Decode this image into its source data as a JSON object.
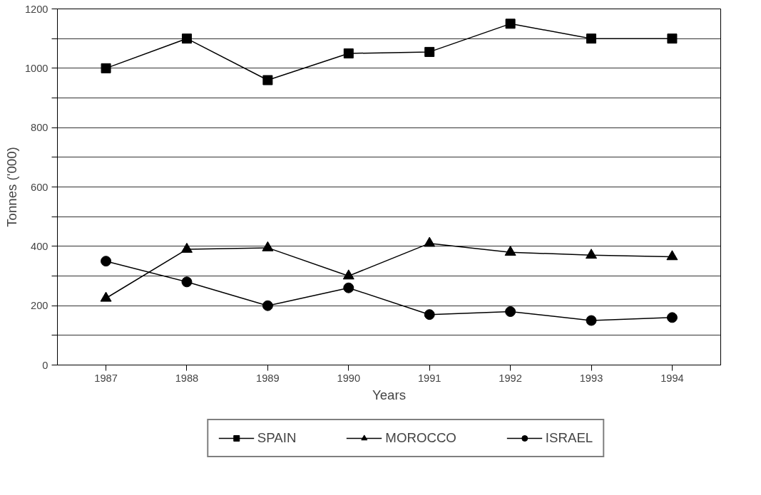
{
  "chart_data": {
    "type": "line",
    "xlabel": "Years",
    "ylabel": "Tonnes ('000)",
    "categories": [
      "1987",
      "1988",
      "1989",
      "1990",
      "1991",
      "1992",
      "1993",
      "1994"
    ],
    "series": [
      {
        "name": "SPAIN",
        "color": "#000000",
        "marker": "square",
        "values": [
          1000,
          1100,
          960,
          1050,
          1055,
          1150,
          1100,
          1100
        ]
      },
      {
        "name": "MOROCCO",
        "color": "#000000",
        "marker": "triangle",
        "values": [
          225,
          390,
          395,
          300,
          410,
          380,
          370,
          365
        ]
      },
      {
        "name": "ISRAEL",
        "color": "#000000",
        "marker": "circle",
        "values": [
          350,
          280,
          200,
          260,
          170,
          180,
          150,
          160
        ]
      }
    ],
    "ylim": [
      0,
      1200
    ],
    "yticks": [
      0,
      {
        "value": 100,
        "label": null
      },
      200,
      {
        "value": 300,
        "label": null
      },
      400,
      {
        "value": 500,
        "label": null
      },
      600,
      {
        "value": 700,
        "label": null
      },
      800,
      {
        "value": 900,
        "label": null
      },
      1000,
      {
        "value": 1100,
        "label": null
      },
      1200
    ],
    "grid": "y",
    "legend": "bottom",
    "line_style": "solid"
  }
}
